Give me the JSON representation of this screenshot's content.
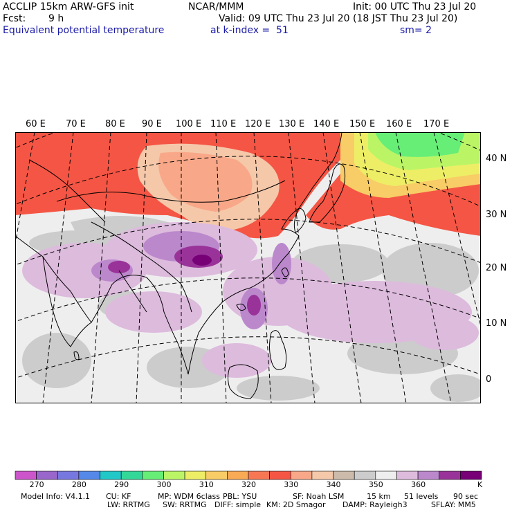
{
  "header": {
    "model": "ACCLIP 15km ARW-GFS init",
    "org": "NCAR/MMM",
    "init": "Init: 00 UTC Thu 23 Jul 20",
    "fcst_label": "Fcst:",
    "fcst_value": "9 h",
    "valid": "Valid: 09 UTC Thu 23 Jul 20 (18 JST Thu 23 Jul 20)",
    "field": "Equivalent potential temperature",
    "level": "at k-index =  51",
    "smooth": "sm= 2"
  },
  "map": {
    "lon_labels": [
      "60 E",
      "70 E",
      "80 E",
      "90 E",
      "100 E",
      "110 E",
      "120 E",
      "130 E",
      "140 E",
      "150 E",
      "160 E",
      "170 E"
    ],
    "lat_labels": [
      "40 N",
      "30 N",
      "20 N",
      "10 N",
      "0"
    ],
    "colors": {
      "land_outline": "#000000",
      "grid": "#000000"
    }
  },
  "colorbar": {
    "colors": [
      "#cc55cc",
      "#9966cc",
      "#7777e0",
      "#5588e8",
      "#22c8c8",
      "#33d899",
      "#66ee77",
      "#bbf566",
      "#eeee66",
      "#f8cc66",
      "#f8aa55",
      "#f77755",
      "#f55544",
      "#f8a888",
      "#f5c8aa",
      "#ccbbaa",
      "#cccccc",
      "#eeeeee",
      "#ddbbdd",
      "#bb88cc",
      "#993399",
      "#770077"
    ],
    "labels": [
      "270",
      "280",
      "290",
      "300",
      "310",
      "320",
      "330",
      "340",
      "350",
      "360"
    ],
    "unit": "K"
  },
  "model_info": {
    "line1": [
      "Model Info: V4.1.1",
      "CU: KF",
      "MP: WDM 6class",
      "PBL: YSU",
      "SF: Noah LSM",
      "15 km",
      "51 levels",
      "90 sec"
    ],
    "line2": [
      "LW: RRTMG",
      "SW: RRTMG",
      "DIFF: simple",
      "KM: 2D Smagor",
      "DAMP: Rayleigh3",
      "SFLAY: MM5"
    ]
  }
}
